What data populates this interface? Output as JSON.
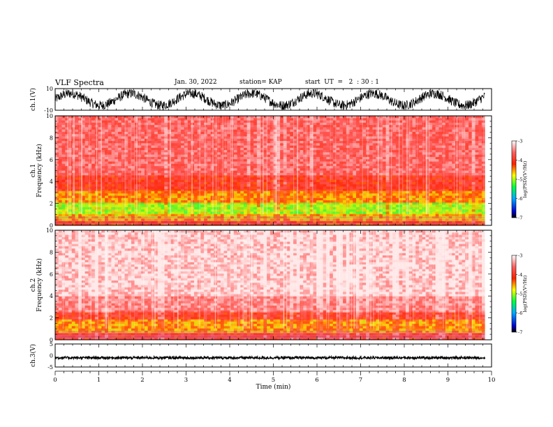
{
  "header": {
    "title": "VLF Spectra",
    "date": "Jan. 30, 2022",
    "station": "station= KAP",
    "start_ut": "start  UT  =   2  : 30 : 1"
  },
  "colorbar": {
    "label": "log(PSD)(V²/Hz)",
    "ticks": [
      "-3",
      "-4",
      "-5",
      "-6",
      "-7"
    ]
  },
  "chart_data": [
    {
      "type": "line",
      "panel": "ch1-waveform",
      "ylabel": "ch.1(V)",
      "ylim": [
        -10,
        10
      ],
      "yticks": [
        "10",
        "-10"
      ],
      "xlim": [
        0,
        10
      ],
      "description_values": {
        "amplitude_range": [
          -10,
          10
        ]
      }
    },
    {
      "type": "heatmap",
      "panel": "ch1-spectrogram",
      "ylabel": "ch.1\nFrequency (kHz)",
      "ylim": [
        0,
        10
      ],
      "yticks": [
        "0",
        "2",
        "4",
        "6",
        "8",
        "10"
      ],
      "xlim": [
        0,
        9.85
      ],
      "bands_khz": [
        {
          "from": 0.0,
          "to": 0.4,
          "level": -4.2
        },
        {
          "from": 0.4,
          "to": 1.0,
          "level": -4.6
        },
        {
          "from": 1.0,
          "to": 2.0,
          "level": -5.0
        },
        {
          "from": 2.0,
          "to": 3.2,
          "level": -4.5
        },
        {
          "from": 3.2,
          "to": 4.5,
          "level": -4.0
        },
        {
          "from": 4.5,
          "to": 10.0,
          "level": -3.6
        }
      ]
    },
    {
      "type": "heatmap",
      "panel": "ch2-spectrogram",
      "ylabel": "ch.2\nFrequency (kHz)",
      "ylim": [
        0,
        10
      ],
      "yticks": [
        "0",
        "2",
        "4",
        "6",
        "8",
        "10"
      ],
      "xlim": [
        0,
        9.85
      ],
      "bands_khz": [
        {
          "from": 0.0,
          "to": 0.6,
          "level": -4.0
        },
        {
          "from": 0.6,
          "to": 1.8,
          "level": -4.5
        },
        {
          "from": 1.8,
          "to": 2.6,
          "level": -4.0
        },
        {
          "from": 2.6,
          "to": 4.0,
          "level": -3.5
        },
        {
          "from": 4.0,
          "to": 10.0,
          "level": -3.2
        }
      ]
    },
    {
      "type": "line",
      "panel": "ch3-waveform",
      "ylabel": "ch.3(V)",
      "ylim": [
        -5,
        5
      ],
      "yticks": [
        "5",
        "0",
        "-5"
      ],
      "xlim": [
        0,
        10
      ],
      "description_values": {
        "baseline": -1.0
      }
    }
  ],
  "xaxis": {
    "xlabel": "Time (min)",
    "ticks": [
      "0",
      "1",
      "2",
      "3",
      "4",
      "5",
      "6",
      "7",
      "8",
      "9",
      "10"
    ],
    "xlim": [
      0,
      10
    ]
  }
}
